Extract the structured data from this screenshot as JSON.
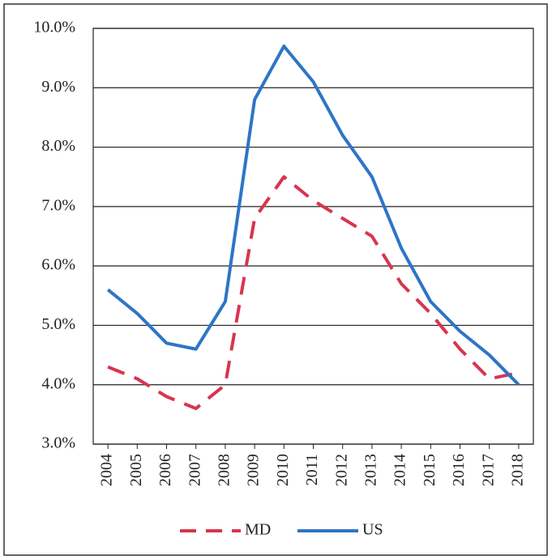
{
  "chart_data": {
    "type": "line",
    "categories": [
      "2004",
      "2005",
      "2006",
      "2007",
      "2008",
      "2009",
      "2010",
      "2011",
      "2012",
      "2013",
      "2014",
      "2015",
      "2016",
      "2017",
      "2018"
    ],
    "series": [
      {
        "name": "MD",
        "color": "#d7354f",
        "dashed": true,
        "values": [
          4.3,
          4.1,
          3.8,
          3.6,
          4.0,
          6.8,
          7.5,
          7.1,
          6.8,
          6.5,
          5.7,
          5.2,
          4.6,
          4.1,
          4.2
        ]
      },
      {
        "name": "US",
        "color": "#2e75c6",
        "dashed": false,
        "values": [
          5.6,
          5.2,
          4.7,
          4.6,
          5.4,
          8.8,
          9.7,
          9.1,
          8.2,
          7.5,
          6.3,
          5.4,
          4.9,
          4.5,
          4.0
        ]
      }
    ],
    "ylim": [
      3,
      10
    ],
    "yticks": [
      {
        "value": 3,
        "label": "3.0%"
      },
      {
        "value": 4,
        "label": "4.0%"
      },
      {
        "value": 5,
        "label": "5.0%"
      },
      {
        "value": 6,
        "label": "6.0%"
      },
      {
        "value": 7,
        "label": "7.0%"
      },
      {
        "value": 8,
        "label": "8.0%"
      },
      {
        "value": 9,
        "label": "9.0%"
      },
      {
        "value": 10,
        "label": "10.0%"
      }
    ],
    "grid": true,
    "legend": "bottom"
  }
}
